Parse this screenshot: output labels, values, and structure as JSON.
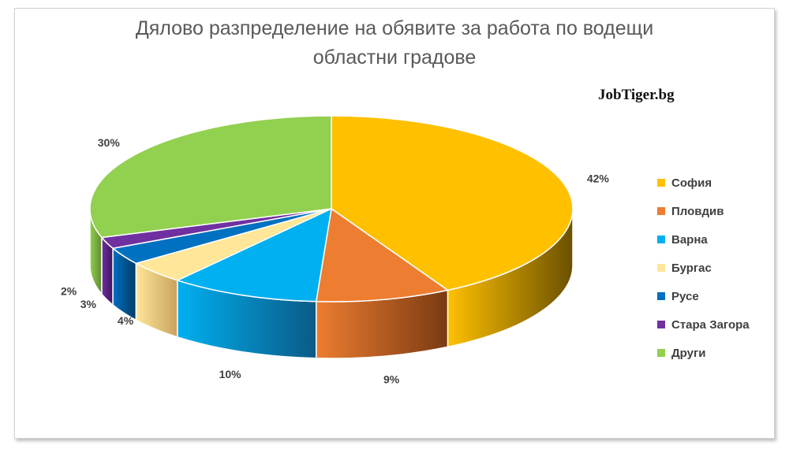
{
  "title": {
    "line1": "Дялово разпределение на обявите за работа по водещи",
    "line2": "областни градове"
  },
  "brand": "JobTiger.bg",
  "chart_data": {
    "type": "pie",
    "style": "3d",
    "legend_position": "right",
    "unit": "%",
    "slices": [
      {
        "name": "София",
        "value": 42,
        "color": "#FFC000",
        "side": "#6B5100"
      },
      {
        "name": "Пловдив",
        "value": 9,
        "color": "#ED7D31",
        "side": "#7A3A12"
      },
      {
        "name": "Варна",
        "value": 10,
        "color": "#00B0F0",
        "side": "#0B5A86"
      },
      {
        "name": "Бургас",
        "value": 4,
        "color": "#FFE699",
        "side": "#C9A25E"
      },
      {
        "name": "Русе",
        "value": 3,
        "color": "#0070C0",
        "side": "#003A66"
      },
      {
        "name": "Стара Загора",
        "value": 2,
        "color": "#7030A0",
        "side": "#3B1560"
      },
      {
        "name": "Други",
        "value": 30,
        "color": "#92D050",
        "side": "#5E8A30"
      }
    ]
  }
}
